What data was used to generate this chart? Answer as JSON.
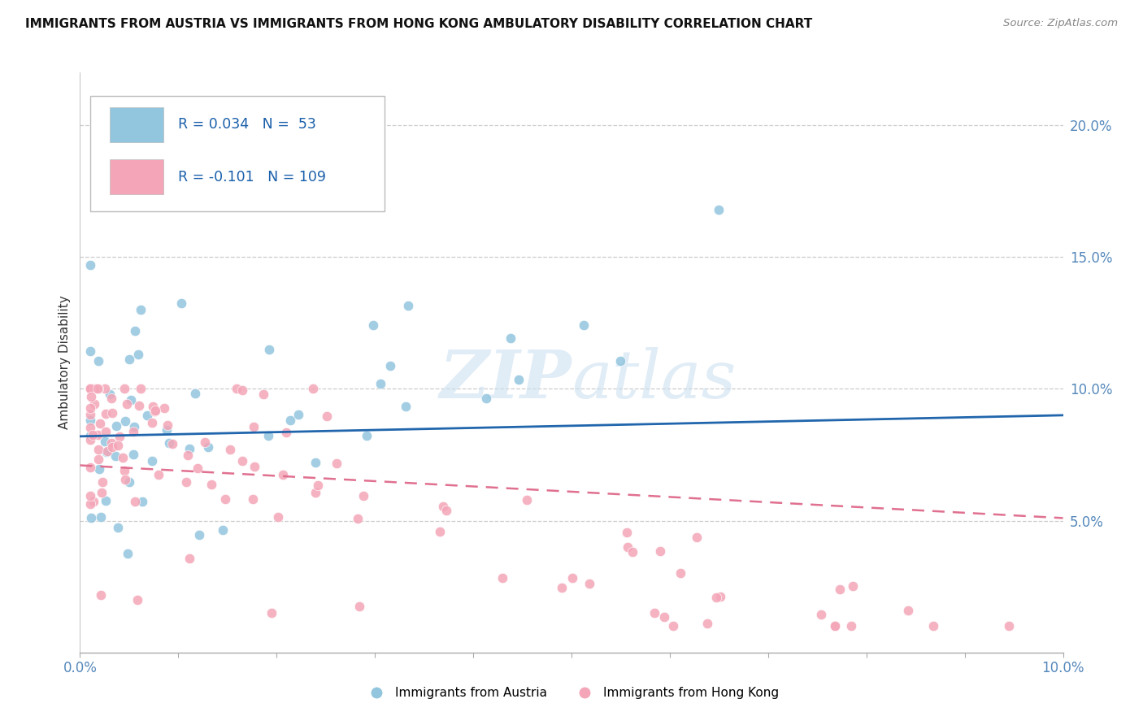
{
  "title": "IMMIGRANTS FROM AUSTRIA VS IMMIGRANTS FROM HONG KONG AMBULATORY DISABILITY CORRELATION CHART",
  "source": "Source: ZipAtlas.com",
  "ylabel": "Ambulatory Disability",
  "xlim": [
    0.0,
    0.1
  ],
  "ylim": [
    0.0,
    0.22
  ],
  "yticks_right": [
    0.05,
    0.1,
    0.15,
    0.2
  ],
  "ytick_labels_right": [
    "5.0%",
    "10.0%",
    "15.0%",
    "20.0%"
  ],
  "xtick_labels_show": [
    "0.0%",
    "10.0%"
  ],
  "xtick_positions_show": [
    0.0,
    0.1
  ],
  "austria_color": "#92c5de",
  "austria_color_dark": "#2171b5",
  "hongkong_color": "#f4a6b8",
  "hongkong_color_dark": "#d6507a",
  "austria_R": 0.034,
  "austria_N": 53,
  "hongkong_R": -0.101,
  "hongkong_N": 109,
  "legend_label_austria": "Immigrants from Austria",
  "legend_label_hongkong": "Immigrants from Hong Kong",
  "background_color": "#ffffff",
  "grid_color": "#cccccc",
  "austria_line_color": "#2166ac",
  "hongkong_line_color": "#e07090",
  "austria_trend_y0": 0.082,
  "austria_trend_y1": 0.09,
  "hongkong_trend_y0": 0.071,
  "hongkong_trend_y1": 0.051
}
